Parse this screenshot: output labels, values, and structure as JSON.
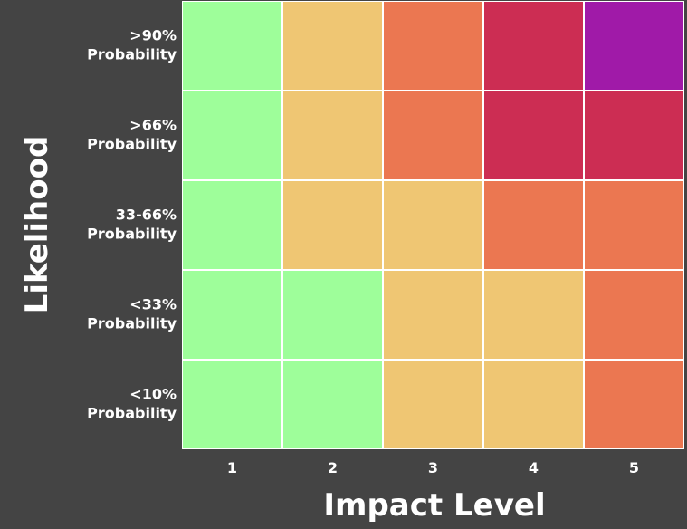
{
  "chart_data": {
    "type": "heatmap",
    "xlabel": "Impact Level",
    "ylabel": "Likelihood",
    "x_categories": [
      "1",
      "2",
      "3",
      "4",
      "5"
    ],
    "y_categories": [
      [
        ">90%",
        "Probability"
      ],
      [
        ">66%",
        "Probability"
      ],
      [
        "33-66%",
        "Probability"
      ],
      [
        "<33%",
        "Probability"
      ],
      [
        "<10%",
        "Probability"
      ]
    ],
    "levels": [
      [
        1,
        2,
        3,
        4,
        5
      ],
      [
        1,
        2,
        3,
        4,
        4
      ],
      [
        1,
        2,
        2,
        3,
        3
      ],
      [
        1,
        1,
        2,
        2,
        3
      ],
      [
        1,
        1,
        2,
        2,
        3
      ]
    ],
    "level_colors": {
      "1": "#9efe9a",
      "2": "#efc673",
      "3": "#eb7751",
      "4": "#cc2d53",
      "5": "#a01aa8"
    },
    "background_color": "#444444",
    "grid_line_color": "#ffffff"
  }
}
